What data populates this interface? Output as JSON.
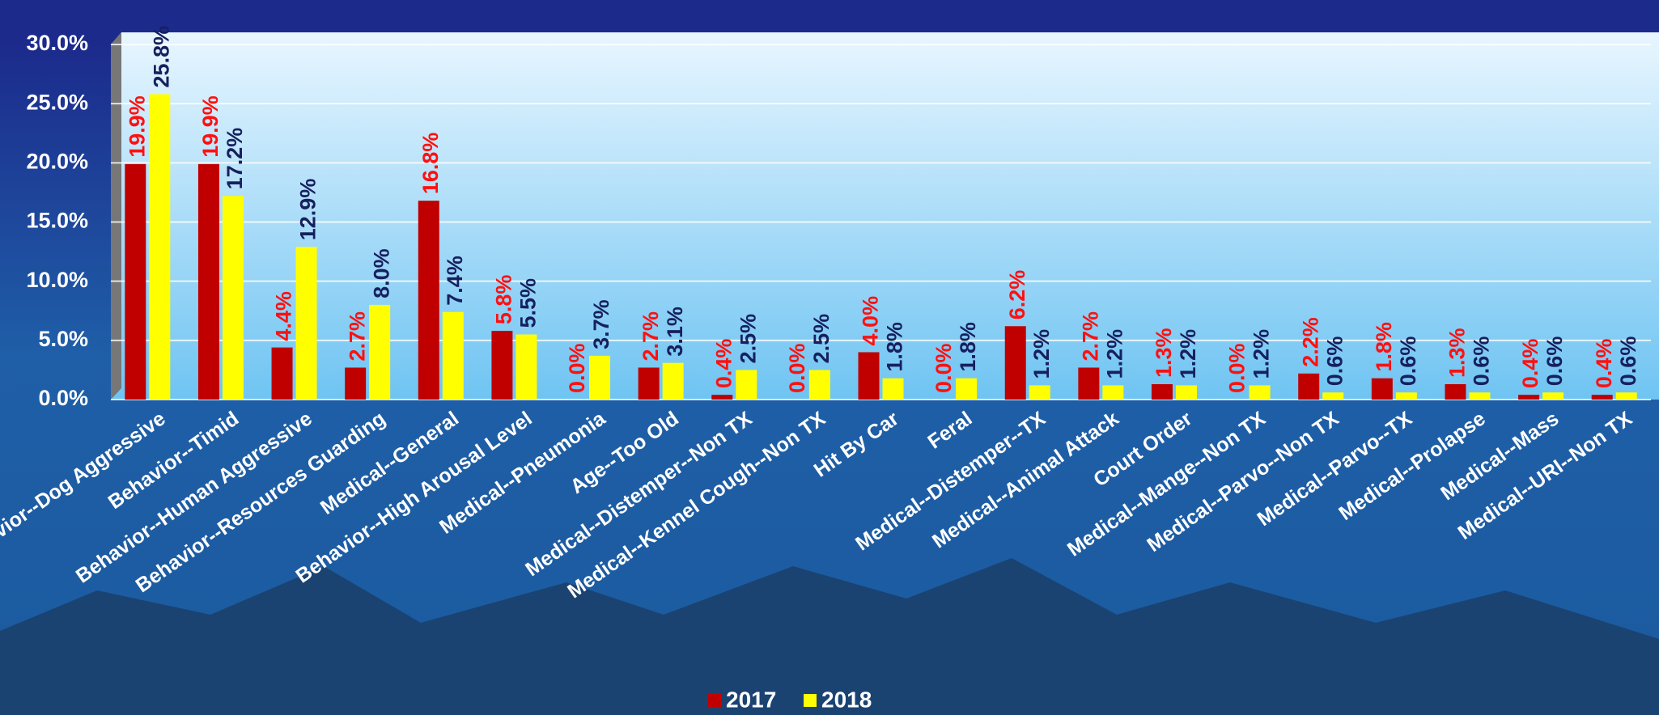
{
  "chart_data": {
    "type": "bar",
    "categories": [
      "Behavior--Dog Aggressive",
      "Behavior--Timid",
      "Behavior--Human Aggressive",
      "Behavior--Resources Guarding",
      "Medical--General",
      "Behavior--High Arousal Level",
      "Medical--Pneumonia",
      "Age--Too Old",
      "Medical--Distemper--Non TX",
      "Medical--Kennel Cough--Non TX",
      "Hit By Car",
      "Feral",
      "Medical--Distemper--TX",
      "Medical--Animal Attack",
      "Court Order",
      "Medical--Mange--Non TX",
      "Medical--Parvo--Non TX",
      "Medical--Parvo--TX",
      "Medical--Prolapse",
      "Medical--Mass",
      "Medical--URI--Non TX"
    ],
    "series": [
      {
        "name": "2017",
        "color": "#c00000",
        "label_color": "#ff1010",
        "values": [
          19.9,
          19.9,
          4.4,
          2.7,
          16.8,
          5.8,
          0.0,
          2.7,
          0.4,
          0.0,
          4.0,
          0.0,
          6.2,
          2.7,
          1.3,
          0.0,
          2.2,
          1.8,
          1.3,
          0.4,
          0.4
        ],
        "value_labels": [
          "19.9%",
          "19.9%",
          "4.4%",
          "2.7%",
          "16.8%",
          "5.8%",
          "0.0%",
          "2.7%",
          "0.4%",
          "0.0%",
          "4.0%",
          "0.0%",
          "6.2%",
          "2.7%",
          "1.3%",
          "0.0%",
          "2.2%",
          "1.8%",
          "1.3%",
          "0.4%",
          "0.4%"
        ]
      },
      {
        "name": "2018",
        "color": "#ffff00",
        "label_color": "#16205e",
        "values": [
          25.8,
          17.2,
          12.9,
          8.0,
          7.4,
          5.5,
          3.7,
          3.1,
          2.5,
          2.5,
          1.8,
          1.8,
          1.2,
          1.2,
          1.2,
          1.2,
          0.6,
          0.6,
          0.6,
          0.6,
          0.6
        ],
        "value_labels": [
          "25.8%",
          "17.2%",
          "12.9%",
          "8.0%",
          "7.4%",
          "5.5%",
          "3.7%",
          "3.1%",
          "2.5%",
          "2.5%",
          "1.8%",
          "1.8%",
          "1.2%",
          "1.2%",
          "1.2%",
          "1.2%",
          "0.6%",
          "0.6%",
          "0.6%",
          "0.6%",
          "0.6%"
        ]
      }
    ],
    "ylim": [
      0,
      30
    ],
    "yticks": [
      {
        "value": 0,
        "label": "0.0%"
      },
      {
        "value": 5,
        "label": "5.0%"
      },
      {
        "value": 10,
        "label": "10.0%"
      },
      {
        "value": 15,
        "label": "15.0%"
      },
      {
        "value": 20,
        "label": "20.0%"
      },
      {
        "value": 25,
        "label": "25.0%"
      },
      {
        "value": 30,
        "label": "30.0%"
      }
    ],
    "grid": true,
    "legend": "bottom"
  }
}
